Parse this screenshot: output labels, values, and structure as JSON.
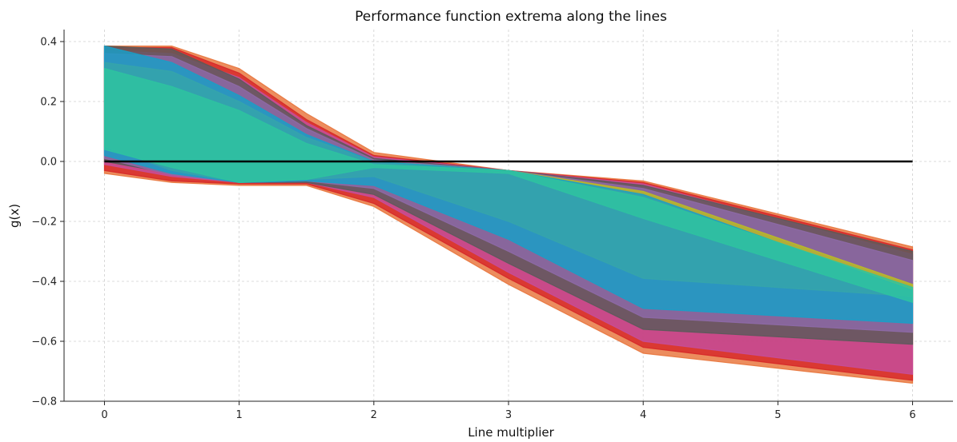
{
  "chart_data": {
    "type": "area",
    "title": "Performance function extrema along the lines",
    "xlabel": "Line multiplier",
    "ylabel": "g(x)",
    "xlim": [
      -0.3,
      6.3
    ],
    "ylim": [
      -0.8,
      0.44
    ],
    "xticks": [
      0,
      1,
      2,
      3,
      4,
      5,
      6
    ],
    "yticks": [
      0.4,
      0.2,
      0.0,
      -0.2,
      -0.4,
      -0.6,
      -0.8
    ],
    "ytick_labels": [
      "0.4",
      "0.2",
      "0.0",
      "−0.2",
      "−0.4",
      "−0.6",
      "−0.8"
    ],
    "grid": true,
    "x": [
      0,
      0.5,
      1,
      1.5,
      2,
      3,
      4,
      6
    ],
    "series": [
      {
        "color": "#e8743b",
        "lower": [
          -0.04,
          -0.07,
          -0.08,
          -0.08,
          -0.15,
          -0.41,
          -0.64,
          -0.74
        ],
        "upper": [
          0.385,
          0.385,
          0.31,
          0.16,
          0.03,
          -0.03,
          -0.065,
          -0.285
        ]
      },
      {
        "color": "#d62728",
        "lower": [
          -0.03,
          -0.065,
          -0.075,
          -0.075,
          -0.14,
          -0.39,
          -0.62,
          -0.73
        ],
        "upper": [
          0.38,
          0.38,
          0.295,
          0.14,
          0.02,
          -0.03,
          -0.07,
          -0.295
        ]
      },
      {
        "color": "#c44e9c",
        "lower": [
          -0.01,
          -0.05,
          -0.07,
          -0.07,
          -0.12,
          -0.37,
          -0.6,
          -0.71
        ],
        "upper": [
          0.37,
          0.36,
          0.28,
          0.13,
          0.015,
          -0.03,
          -0.075,
          -0.31
        ]
      },
      {
        "color": "#5a5a5a",
        "lower": [
          0.0,
          -0.04,
          -0.07,
          -0.07,
          -0.11,
          -0.34,
          -0.56,
          -0.61
        ],
        "upper": [
          0.385,
          0.375,
          0.275,
          0.12,
          0.01,
          -0.03,
          -0.08,
          -0.3
        ]
      },
      {
        "color": "#8e6aa8",
        "lower": [
          0.01,
          -0.045,
          -0.07,
          -0.065,
          -0.09,
          -0.3,
          -0.52,
          -0.57
        ],
        "upper": [
          0.36,
          0.35,
          0.25,
          0.11,
          0.005,
          -0.03,
          -0.09,
          -0.33
        ]
      },
      {
        "color": "#bcbd22",
        "lower": [
          0.05,
          -0.03,
          -0.07,
          -0.06,
          -0.05,
          -0.2,
          -0.39,
          -0.45
        ],
        "upper": [
          0.33,
          0.3,
          0.2,
          0.08,
          0.0,
          -0.03,
          -0.1,
          -0.41
        ]
      },
      {
        "color": "#17a0c8",
        "lower": [
          0.02,
          -0.04,
          -0.07,
          -0.065,
          -0.08,
          -0.26,
          -0.49,
          -0.54
        ],
        "upper": [
          0.385,
          0.33,
          0.22,
          0.09,
          0.0,
          -0.03,
          -0.11,
          -0.43
        ]
      },
      {
        "color": "#2ec4a0",
        "lower": [
          0.04,
          -0.02,
          -0.07,
          -0.06,
          -0.02,
          -0.04,
          -0.19,
          -0.47
        ],
        "upper": [
          0.31,
          0.25,
          0.17,
          0.06,
          -0.01,
          -0.03,
          -0.12,
          -0.42
        ]
      }
    ],
    "reference_line": {
      "y": 0,
      "x_from": 0,
      "x_to": 6,
      "color": "#000000"
    }
  }
}
